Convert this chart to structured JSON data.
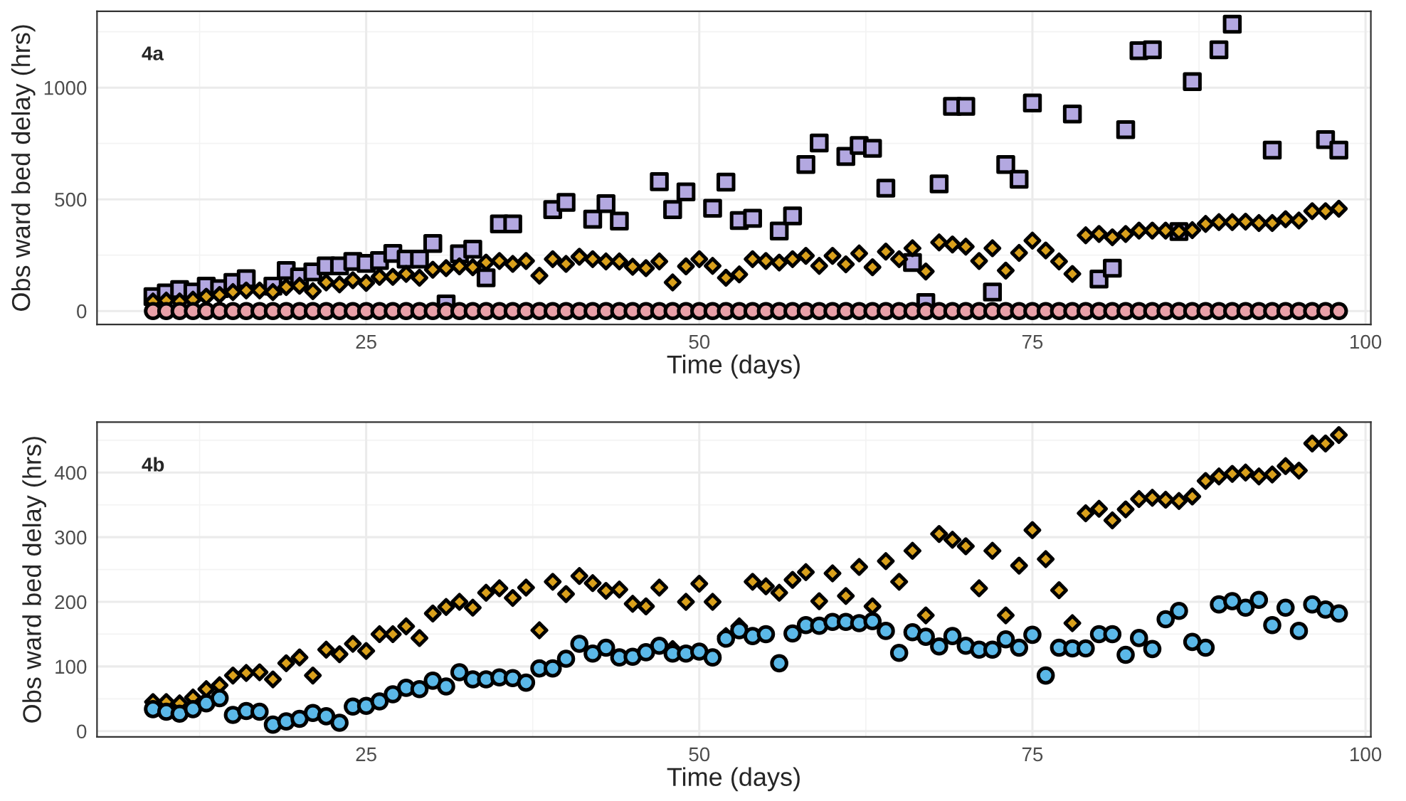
{
  "chart_data": [
    {
      "type": "scatter",
      "xlabel": "Time (days)",
      "ylabel": "Obs ward bed delay (hrs)",
      "annotations": [
        "4a"
      ],
      "grid": true,
      "xlim": [
        4.8,
        100.4
      ],
      "ylim": [
        -60,
        1342
      ],
      "xticks": [
        25,
        50,
        75,
        100
      ],
      "yticks": [
        0,
        500,
        1000
      ],
      "x": [
        9,
        10,
        11,
        12,
        13,
        14,
        15,
        16,
        17,
        18,
        19,
        20,
        21,
        22,
        23,
        24,
        25,
        26,
        27,
        28,
        29,
        30,
        31,
        32,
        33,
        34,
        35,
        36,
        37,
        38,
        39,
        40,
        41,
        42,
        43,
        44,
        45,
        46,
        47,
        48,
        49,
        50,
        51,
        52,
        53,
        54,
        55,
        56,
        57,
        58,
        59,
        60,
        61,
        62,
        63,
        64,
        65,
        66,
        67,
        68,
        69,
        70,
        71,
        72,
        73,
        74,
        75,
        76,
        77,
        78,
        79,
        80,
        81,
        82,
        83,
        84,
        85,
        86,
        87,
        88,
        89,
        90,
        91,
        92,
        93,
        94,
        95,
        96,
        97,
        98
      ],
      "series": [
        {
          "color": "#b3a8e0",
          "marker": "square",
          "values": [
            64,
            81,
            96,
            85,
            111,
            100,
            128,
            145,
            null,
            111,
            181,
            153,
            175,
            202,
            202,
            222,
            213,
            226,
            258,
            232,
            232,
            302,
            32,
            256,
            277,
            149,
            390,
            390,
            null,
            null,
            454,
            486,
            null,
            411,
            481,
            403,
            null,
            null,
            579,
            454,
            533,
            null,
            460,
            577,
            405,
            415,
            null,
            358,
            426,
            656,
            752,
            null,
            692,
            741,
            728,
            550,
            null,
            217,
            38,
            569,
            916,
            916,
            null,
            85,
            656,
            590,
            931,
            null,
            null,
            882,
            null,
            143,
            192,
            812,
            1165,
            1169,
            null,
            356,
            1027,
            null,
            1169,
            1284,
            null,
            null,
            720,
            null,
            null,
            null,
            767,
            720
          ]
        },
        {
          "color": "#d9a01c",
          "marker": "diamond",
          "values": [
            43,
            47,
            43,
            51,
            64,
            72,
            85,
            92,
            92,
            85,
            107,
            113,
            89,
            128,
            119,
            138,
            126,
            153,
            153,
            166,
            149,
            185,
            192,
            200,
            196,
            217,
            224,
            211,
            224,
            158,
            232,
            211,
            243,
            232,
            222,
            222,
            198,
            192,
            222,
            128,
            200,
            232,
            202,
            149,
            164,
            232,
            224,
            217,
            232,
            247,
            202,
            247,
            209,
            258,
            196,
            266,
            232,
            281,
            177,
            307,
            298,
            288,
            224,
            281,
            181,
            260,
            315,
            271,
            222,
            166,
            339,
            345,
            330,
            345,
            360,
            360,
            360,
            356,
            362,
            390,
            398,
            398,
            400,
            394,
            394,
            411,
            405,
            447,
            447,
            458
          ]
        },
        {
          "color": "#e8a0a8",
          "marker": "circle",
          "values": [
            0,
            0,
            0,
            0,
            0,
            0,
            0,
            0,
            0,
            0,
            0,
            0,
            0,
            0,
            0,
            0,
            0,
            0,
            0,
            0,
            0,
            0,
            0,
            0,
            0,
            0,
            0,
            0,
            0,
            0,
            0,
            0,
            0,
            0,
            0,
            0,
            0,
            0,
            0,
            0,
            0,
            0,
            0,
            0,
            0,
            0,
            0,
            0,
            0,
            0,
            0,
            0,
            0,
            0,
            0,
            0,
            0,
            0,
            0,
            0,
            0,
            0,
            0,
            0,
            0,
            0,
            0,
            0,
            0,
            0,
            0,
            0,
            0,
            0,
            0,
            0,
            0,
            0,
            0,
            0,
            0,
            0,
            0,
            0,
            0,
            0,
            0,
            0,
            0,
            0
          ]
        }
      ]
    },
    {
      "type": "scatter",
      "xlabel": "Time (days)",
      "ylabel": "Obs ward bed delay (hrs)",
      "annotations": [
        "4b"
      ],
      "grid": true,
      "xlim": [
        4.8,
        100.4
      ],
      "ylim": [
        -9,
        478
      ],
      "xticks": [
        25,
        50,
        75,
        100
      ],
      "yticks": [
        0,
        100,
        200,
        300,
        400
      ],
      "x": [
        9,
        10,
        11,
        12,
        13,
        14,
        15,
        16,
        17,
        18,
        19,
        20,
        21,
        22,
        23,
        24,
        25,
        26,
        27,
        28,
        29,
        30,
        31,
        32,
        33,
        34,
        35,
        36,
        37,
        38,
        39,
        40,
        41,
        42,
        43,
        44,
        45,
        46,
        47,
        48,
        49,
        50,
        51,
        52,
        53,
        54,
        55,
        56,
        57,
        58,
        59,
        60,
        61,
        62,
        63,
        64,
        65,
        66,
        67,
        68,
        69,
        70,
        71,
        72,
        73,
        74,
        75,
        76,
        77,
        78,
        79,
        80,
        81,
        82,
        83,
        84,
        85,
        86,
        87,
        88,
        89,
        90,
        91,
        92,
        93,
        94,
        95,
        96,
        97,
        98
      ],
      "series": [
        {
          "color": "#d9a01c",
          "marker": "diamond",
          "values": [
            45,
            45,
            43,
            52,
            65,
            71,
            86,
            90,
            91,
            80,
            105,
            114,
            86,
            126,
            119,
            135,
            124,
            150,
            150,
            162,
            144,
            182,
            192,
            200,
            191,
            214,
            221,
            206,
            222,
            156,
            231,
            212,
            240,
            229,
            217,
            219,
            197,
            193,
            222,
            127,
            200,
            228,
            200,
            147,
            162,
            231,
            224,
            214,
            234,
            246,
            201,
            244,
            209,
            254,
            193,
            263,
            231,
            279,
            179,
            305,
            296,
            286,
            221,
            279,
            179,
            256,
            311,
            266,
            218,
            167,
            337,
            344,
            326,
            343,
            359,
            361,
            358,
            356,
            363,
            387,
            394,
            398,
            400,
            394,
            397,
            410,
            403,
            445,
            445,
            458
          ]
        },
        {
          "color": "#5bb8e8",
          "marker": "circle",
          "values": [
            34,
            30,
            27,
            34,
            43,
            51,
            25,
            31,
            30,
            10,
            15,
            19,
            28,
            23,
            13,
            38,
            39,
            46,
            57,
            67,
            65,
            78,
            69,
            91,
            80,
            80,
            83,
            82,
            75,
            97,
            97,
            112,
            135,
            120,
            129,
            114,
            115,
            122,
            132,
            120,
            120,
            123,
            114,
            143,
            156,
            147,
            150,
            105,
            151,
            164,
            163,
            169,
            169,
            167,
            170,
            155,
            121,
            153,
            146,
            131,
            147,
            132,
            126,
            126,
            142,
            129,
            149,
            86,
            129,
            128,
            128,
            150,
            150,
            118,
            144,
            127,
            173,
            186,
            138,
            129,
            196,
            201,
            191,
            203,
            164,
            191,
            155,
            196,
            188,
            182
          ]
        }
      ]
    }
  ]
}
